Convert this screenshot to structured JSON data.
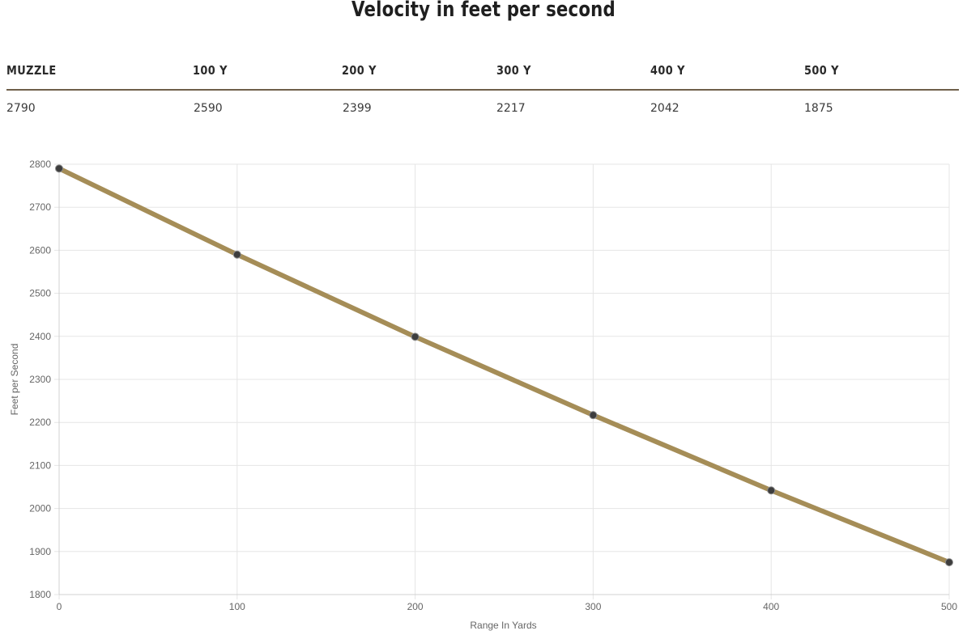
{
  "page": {
    "title": "Velocity in feet per second"
  },
  "velocity_table": {
    "columns": [
      {
        "label": "MUZZLE",
        "value": "2790"
      },
      {
        "label": "100 Y",
        "value": "2590"
      },
      {
        "label": "200 Y",
        "value": "2399"
      },
      {
        "label": "300 Y",
        "value": "2217"
      },
      {
        "label": "400 Y",
        "value": "2042"
      },
      {
        "label": "500 Y",
        "value": "1875"
      }
    ]
  },
  "colors": {
    "line": "#a58d57",
    "point": "#3d3d3d",
    "grid": "#e5e5e5",
    "rule": "#6f5f4a"
  },
  "chart_data": {
    "type": "line",
    "x": [
      0,
      100,
      200,
      300,
      400,
      500
    ],
    "series": [
      {
        "values": [
          2790,
          2590,
          2399,
          2217,
          2042,
          1875
        ]
      }
    ],
    "xlabel": "Range In Yards",
    "ylabel": "Feet per Second",
    "xlim": [
      0,
      500
    ],
    "ylim": [
      1800,
      2800
    ],
    "xticks": [
      0,
      100,
      200,
      300,
      400,
      500
    ],
    "yticks": [
      1800,
      1900,
      2000,
      2100,
      2200,
      2300,
      2400,
      2500,
      2600,
      2700,
      2800
    ],
    "grid": true,
    "legend": "none"
  }
}
